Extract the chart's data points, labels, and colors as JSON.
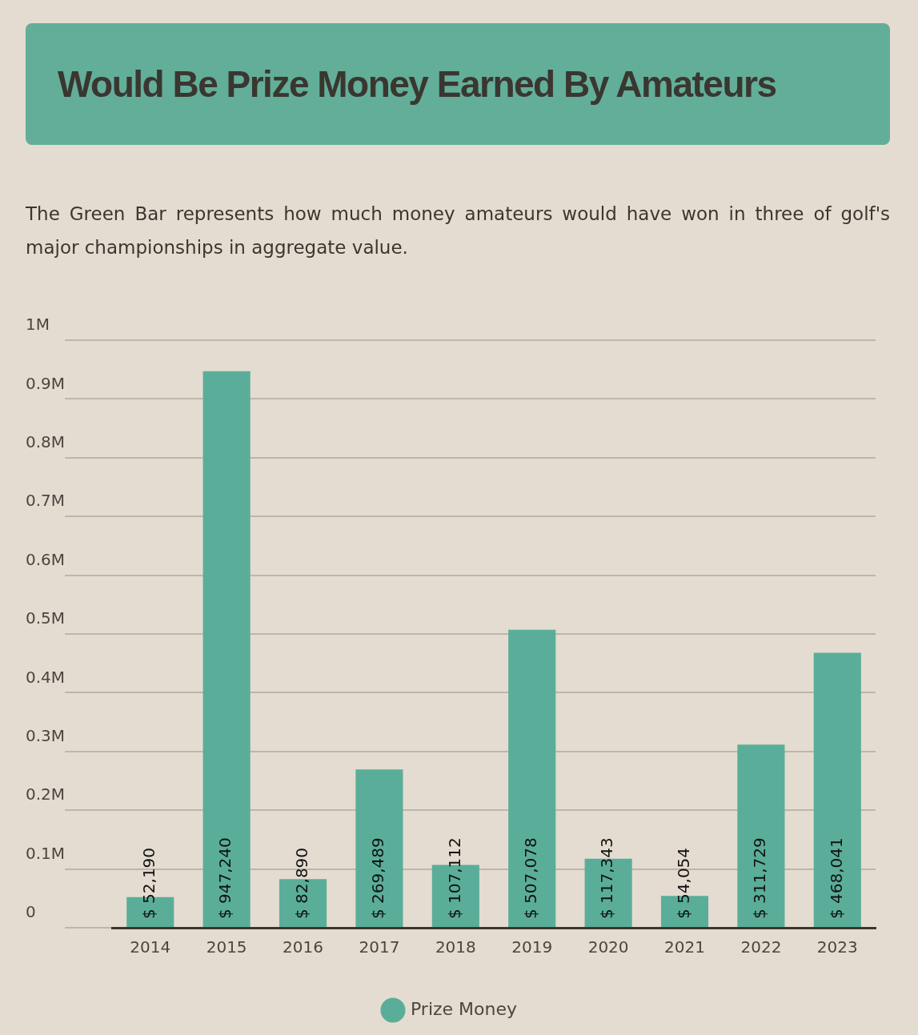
{
  "chart_data": {
    "type": "bar",
    "title": "Would Be Prize Money Earned By Amateurs",
    "subtitle": "The Green Bar represents how much money amateurs would have won in three of golf's major championships in aggregate value.",
    "categories": [
      "2014",
      "2015",
      "2016",
      "2017",
      "2018",
      "2019",
      "2020",
      "2021",
      "2022",
      "2023"
    ],
    "series": [
      {
        "name": "Prize Money",
        "color": "#5aae99",
        "values": [
          52190,
          947240,
          82890,
          269489,
          107112,
          507078,
          117343,
          54054,
          311729,
          468041
        ]
      }
    ],
    "value_labels": [
      "$ 52,190",
      "$ 947,240",
      "$ 82,890",
      "$ 269,489",
      "$ 107,112",
      "$ 507,078",
      "$ 117,343",
      "$ 54,054",
      "$ 311,729",
      "$ 468,041"
    ],
    "ylim": [
      0,
      1000000
    ],
    "yticks": [
      0,
      {
        "value": 100000,
        "label": "0.1M"
      },
      {
        "value": 200000,
        "label": "0.2M"
      },
      {
        "value": 300000,
        "label": "0.3M"
      },
      {
        "value": 400000,
        "label": "0.4M"
      },
      {
        "value": 500000,
        "label": "0.5M"
      },
      {
        "value": 600000,
        "label": "0.6M"
      },
      {
        "value": 700000,
        "label": "0.7M"
      },
      {
        "value": 800000,
        "label": "0.8M"
      },
      {
        "value": 900000,
        "label": "0.9M"
      },
      {
        "value": 1000000,
        "label": "1M"
      }
    ],
    "grid": "y",
    "legend": "bottom"
  }
}
